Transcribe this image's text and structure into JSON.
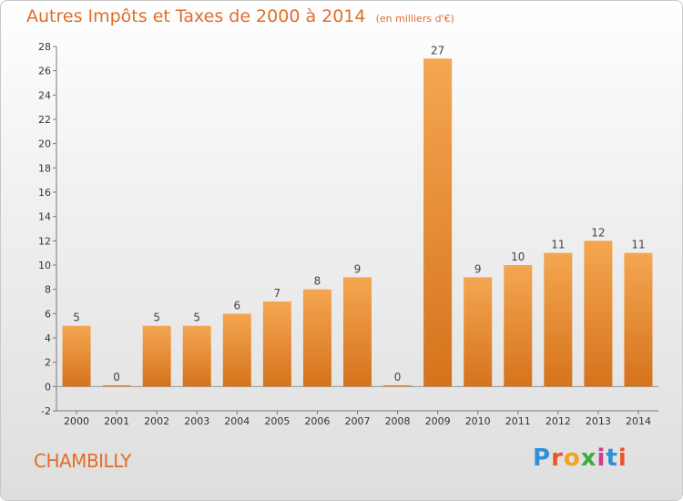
{
  "header": {
    "title": "Autres Impôts et Taxes de 2000 à 2014",
    "unit": "(en milliers d'€)"
  },
  "footer": {
    "commune": "CHAMBILLY",
    "logo_text": "Proxiti",
    "logo_colors": [
      "#2f8fd8",
      "#e8552a",
      "#f2a21b",
      "#3cab3c",
      "#d23a8c",
      "#2f8fd8",
      "#e8552a"
    ]
  },
  "colors": {
    "bar_top": "#f5a651",
    "bar_bottom": "#d5731c",
    "accent": "#e06d2a"
  },
  "chart_data": {
    "type": "bar",
    "categories": [
      "2000",
      "2001",
      "2002",
      "2003",
      "2004",
      "2005",
      "2006",
      "2007",
      "2008",
      "2009",
      "2010",
      "2011",
      "2012",
      "2013",
      "2014"
    ],
    "values": [
      5,
      0,
      5,
      5,
      6,
      7,
      8,
      9,
      0,
      27,
      9,
      10,
      11,
      12,
      11
    ],
    "title": "Autres Impôts et Taxes de 2000 à 2014",
    "xlabel": "",
    "ylabel": "",
    "ylim": [
      -2,
      28
    ],
    "yticks": [
      -2,
      0,
      2,
      4,
      6,
      8,
      10,
      12,
      14,
      16,
      18,
      20,
      22,
      24,
      26,
      28
    ],
    "grid": false
  }
}
